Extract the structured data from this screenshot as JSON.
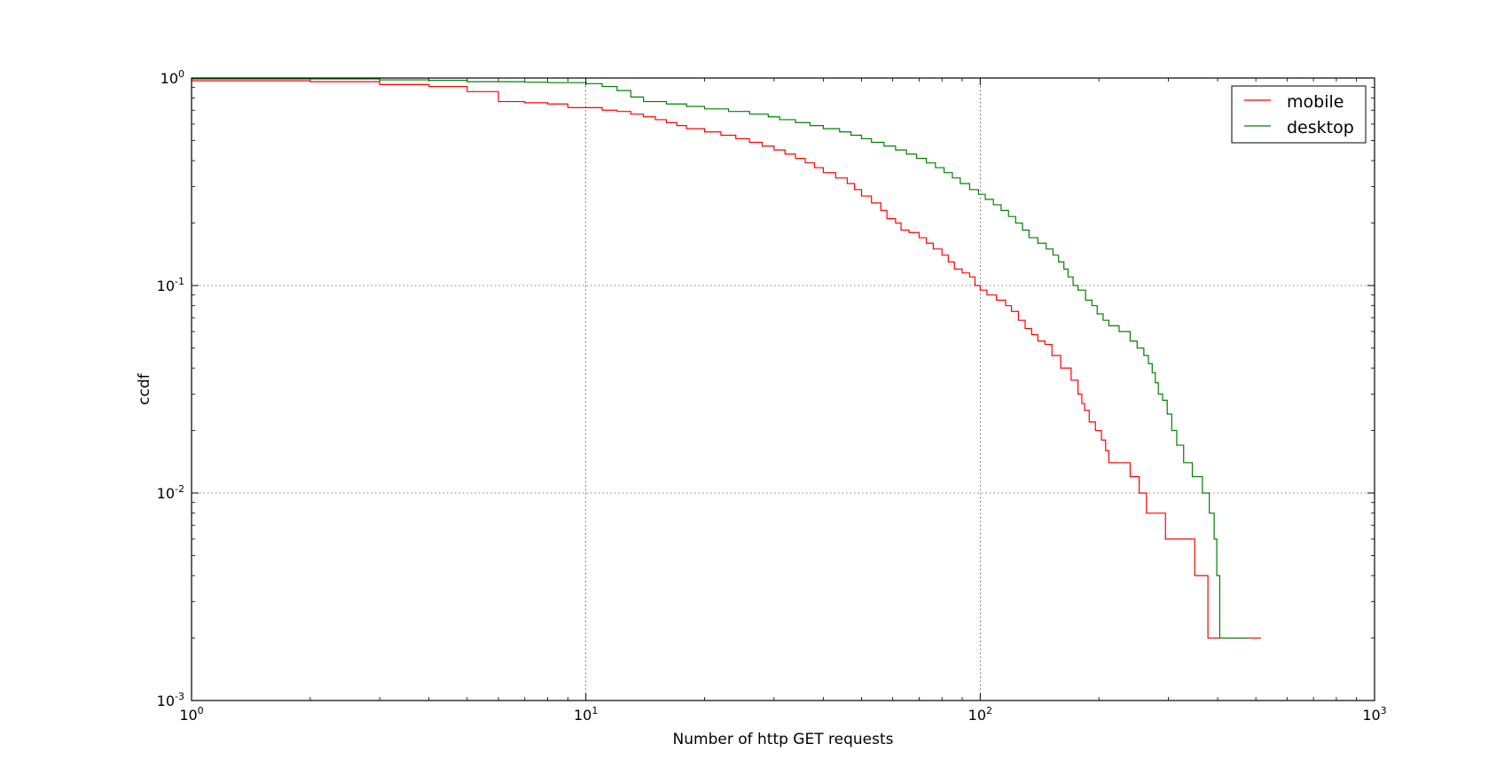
{
  "chart_data": {
    "type": "line",
    "title": "",
    "xlabel": "Number of http GET requests",
    "ylabel": "ccdf",
    "x_scale": "log",
    "y_scale": "log",
    "xlim": [
      1,
      1000
    ],
    "ylim": [
      0.001,
      1
    ],
    "grid": true,
    "legend_position": "top-right",
    "x_ticks": [
      {
        "value": 1,
        "base": "10",
        "exp": "0"
      },
      {
        "value": 10,
        "base": "10",
        "exp": "1"
      },
      {
        "value": 100,
        "base": "10",
        "exp": "2"
      },
      {
        "value": 1000,
        "base": "10",
        "exp": "3"
      }
    ],
    "y_ticks": [
      {
        "value": 0.001,
        "base": "10",
        "exp": "-3"
      },
      {
        "value": 0.01,
        "base": "10",
        "exp": "-2"
      },
      {
        "value": 0.1,
        "base": "10",
        "exp": "-1"
      },
      {
        "value": 1,
        "base": "10",
        "exp": "0"
      }
    ],
    "series": [
      {
        "name": "mobile",
        "color": "#ff0000",
        "points": [
          [
            1,
            0.97
          ],
          [
            2,
            0.96
          ],
          [
            3,
            0.93
          ],
          [
            4,
            0.91
          ],
          [
            5,
            0.86
          ],
          [
            6,
            0.77
          ],
          [
            7,
            0.76
          ],
          [
            8,
            0.75
          ],
          [
            9,
            0.72
          ],
          [
            11,
            0.7
          ],
          [
            12,
            0.69
          ],
          [
            13,
            0.67
          ],
          [
            14,
            0.65
          ],
          [
            15,
            0.63
          ],
          [
            16,
            0.61
          ],
          [
            17,
            0.59
          ],
          [
            18,
            0.57
          ],
          [
            20,
            0.55
          ],
          [
            22,
            0.53
          ],
          [
            24,
            0.51
          ],
          [
            26,
            0.49
          ],
          [
            28,
            0.47
          ],
          [
            30,
            0.45
          ],
          [
            32,
            0.43
          ],
          [
            34,
            0.41
          ],
          [
            36,
            0.39
          ],
          [
            38,
            0.37
          ],
          [
            40,
            0.35
          ],
          [
            43,
            0.33
          ],
          [
            46,
            0.31
          ],
          [
            48,
            0.29
          ],
          [
            50,
            0.27
          ],
          [
            53,
            0.25
          ],
          [
            56,
            0.23
          ],
          [
            58,
            0.21
          ],
          [
            61,
            0.2
          ],
          [
            63,
            0.185
          ],
          [
            66,
            0.18
          ],
          [
            70,
            0.17
          ],
          [
            73,
            0.16
          ],
          [
            76,
            0.15
          ],
          [
            80,
            0.14
          ],
          [
            83,
            0.13
          ],
          [
            86,
            0.12
          ],
          [
            90,
            0.115
          ],
          [
            94,
            0.11
          ],
          [
            97,
            0.1
          ],
          [
            100,
            0.095
          ],
          [
            104,
            0.09
          ],
          [
            110,
            0.085
          ],
          [
            116,
            0.08
          ],
          [
            120,
            0.075
          ],
          [
            125,
            0.068
          ],
          [
            130,
            0.062
          ],
          [
            135,
            0.058
          ],
          [
            140,
            0.054
          ],
          [
            146,
            0.052
          ],
          [
            152,
            0.046
          ],
          [
            160,
            0.04
          ],
          [
            170,
            0.035
          ],
          [
            177,
            0.03
          ],
          [
            181,
            0.027
          ],
          [
            184,
            0.025
          ],
          [
            189,
            0.022
          ],
          [
            196,
            0.02
          ],
          [
            203,
            0.018
          ],
          [
            208,
            0.016
          ],
          [
            212,
            0.014
          ],
          [
            240,
            0.012
          ],
          [
            253,
            0.01
          ],
          [
            264,
            0.008
          ],
          [
            295,
            0.006
          ],
          [
            350,
            0.004
          ],
          [
            378,
            0.002
          ],
          [
            515,
            0.002
          ]
        ]
      },
      {
        "name": "desktop",
        "color": "#008000",
        "points": [
          [
            1,
            0.99
          ],
          [
            3,
            0.98
          ],
          [
            4,
            0.975
          ],
          [
            5,
            0.96
          ],
          [
            7,
            0.955
          ],
          [
            8,
            0.95
          ],
          [
            10,
            0.94
          ],
          [
            11,
            0.91
          ],
          [
            12,
            0.87
          ],
          [
            13,
            0.81
          ],
          [
            14,
            0.77
          ],
          [
            16,
            0.75
          ],
          [
            18,
            0.73
          ],
          [
            20,
            0.71
          ],
          [
            23,
            0.69
          ],
          [
            26,
            0.67
          ],
          [
            29,
            0.65
          ],
          [
            31,
            0.63
          ],
          [
            34,
            0.61
          ],
          [
            37,
            0.59
          ],
          [
            40,
            0.57
          ],
          [
            44,
            0.55
          ],
          [
            47,
            0.53
          ],
          [
            50,
            0.51
          ],
          [
            53,
            0.49
          ],
          [
            57,
            0.47
          ],
          [
            61,
            0.45
          ],
          [
            65,
            0.43
          ],
          [
            69,
            0.41
          ],
          [
            73,
            0.39
          ],
          [
            77,
            0.37
          ],
          [
            81,
            0.35
          ],
          [
            85,
            0.33
          ],
          [
            89,
            0.31
          ],
          [
            94,
            0.29
          ],
          [
            99,
            0.275
          ],
          [
            103,
            0.26
          ],
          [
            108,
            0.245
          ],
          [
            113,
            0.23
          ],
          [
            118,
            0.215
          ],
          [
            123,
            0.2
          ],
          [
            128,
            0.185
          ],
          [
            133,
            0.17
          ],
          [
            140,
            0.16
          ],
          [
            147,
            0.15
          ],
          [
            153,
            0.14
          ],
          [
            158,
            0.13
          ],
          [
            163,
            0.12
          ],
          [
            167,
            0.11
          ],
          [
            172,
            0.1
          ],
          [
            177,
            0.095
          ],
          [
            185,
            0.085
          ],
          [
            192,
            0.08
          ],
          [
            198,
            0.073
          ],
          [
            205,
            0.068
          ],
          [
            212,
            0.064
          ],
          [
            225,
            0.06
          ],
          [
            240,
            0.054
          ],
          [
            250,
            0.05
          ],
          [
            260,
            0.046
          ],
          [
            267,
            0.042
          ],
          [
            273,
            0.038
          ],
          [
            278,
            0.034
          ],
          [
            283,
            0.03
          ],
          [
            290,
            0.028
          ],
          [
            298,
            0.024
          ],
          [
            306,
            0.02
          ],
          [
            315,
            0.017
          ],
          [
            328,
            0.014
          ],
          [
            345,
            0.012
          ],
          [
            366,
            0.01
          ],
          [
            381,
            0.008
          ],
          [
            392,
            0.006
          ],
          [
            398,
            0.004
          ],
          [
            405,
            0.002
          ],
          [
            480,
            0.002
          ]
        ]
      }
    ]
  }
}
